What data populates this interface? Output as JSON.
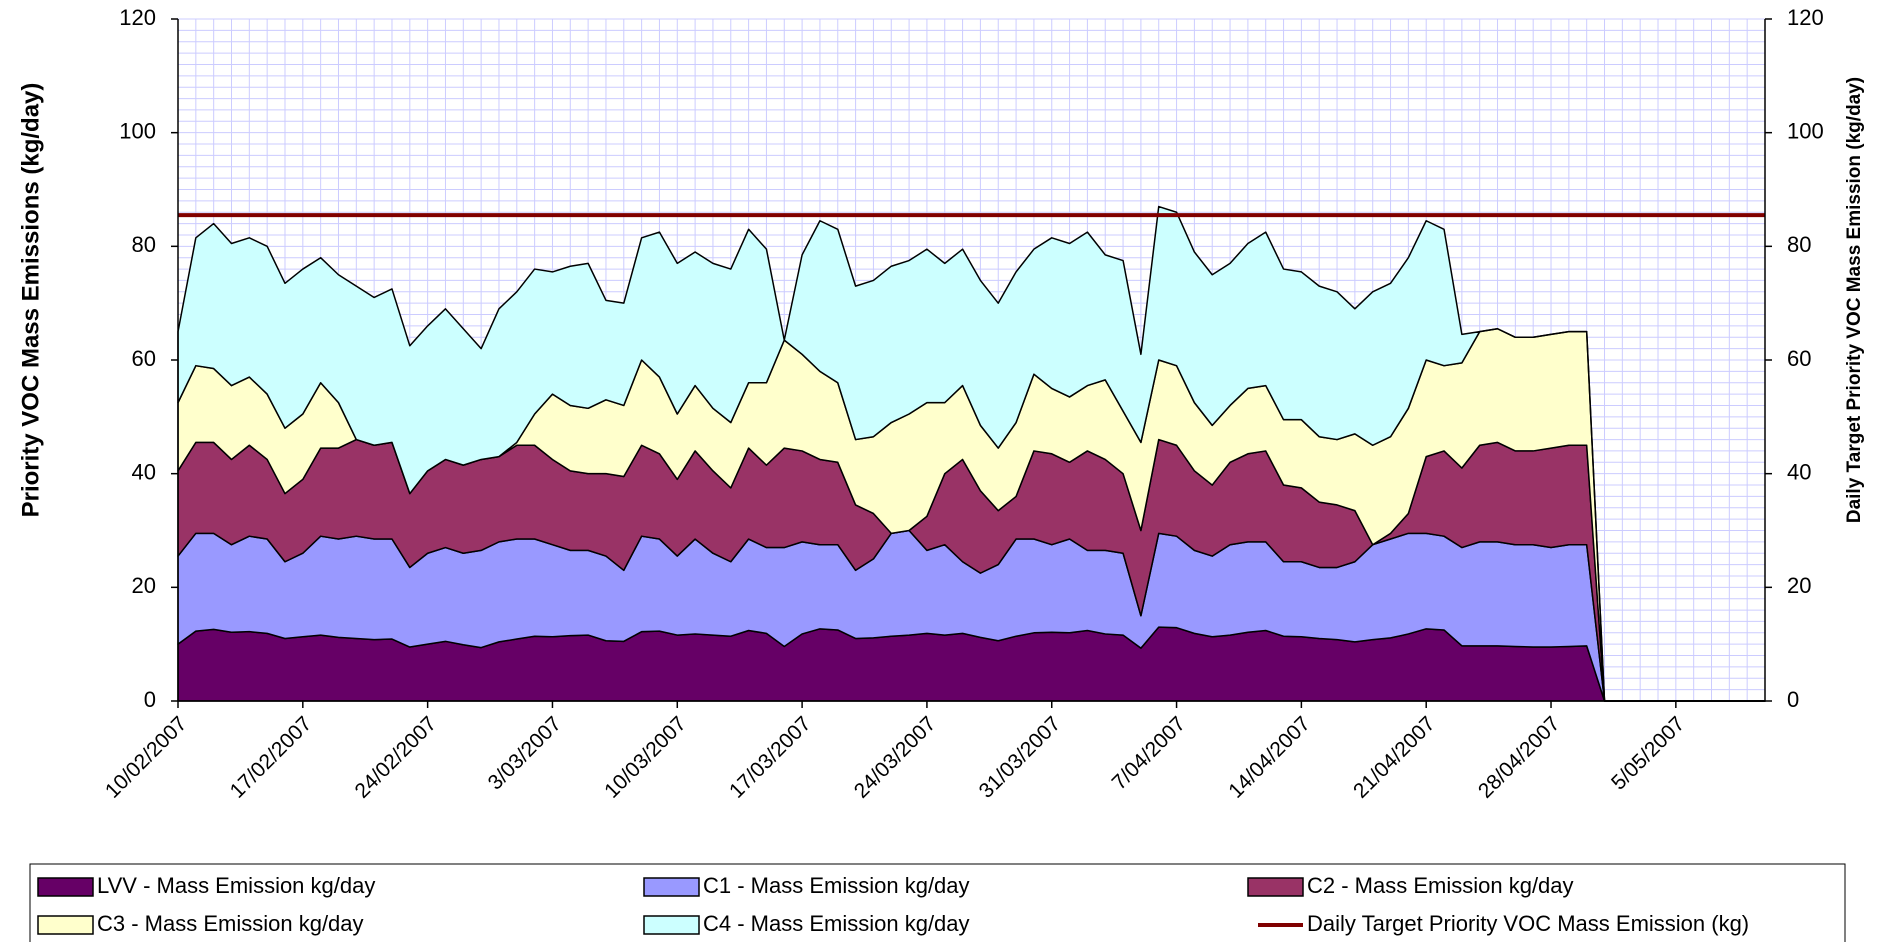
{
  "chart_data": {
    "type": "stacked_area",
    "ylabel": "Priority VOC Mass Emissions (kg/day)",
    "y2label": "Daily Target Priority VOC Mass Emission (kg/day)",
    "categories": [
      "10/02/2007",
      null,
      null,
      null,
      null,
      null,
      null,
      "17/02/2007",
      null,
      null,
      null,
      null,
      null,
      null,
      "24/02/2007",
      null,
      null,
      null,
      null,
      null,
      null,
      "3/03/2007",
      null,
      null,
      null,
      null,
      null,
      null,
      "10/03/2007",
      null,
      null,
      null,
      null,
      null,
      null,
      "17/03/2007",
      null,
      null,
      null,
      null,
      null,
      null,
      "24/03/2007",
      null,
      null,
      null,
      null,
      null,
      null,
      "31/03/2007",
      null,
      null,
      null,
      null,
      null,
      null,
      "7/04/2007",
      null,
      null,
      null,
      null,
      null,
      null,
      "14/04/2007",
      null,
      null,
      null,
      null,
      null,
      null,
      "21/04/2007",
      null,
      null,
      null,
      null,
      null,
      null,
      "28/04/2007",
      null,
      null,
      null,
      null,
      null,
      null,
      "5/05/2007",
      null,
      null,
      null,
      null,
      null
    ],
    "ylim": [
      0,
      120
    ],
    "yticks": [
      0,
      20,
      40,
      60,
      80,
      100,
      120
    ],
    "y2lim": [
      0,
      120
    ],
    "y2ticks": [
      0,
      20,
      40,
      60,
      80,
      100,
      120
    ],
    "grid": true,
    "grid_minor_step": 2,
    "legend": "bottom",
    "series": [
      {
        "name": "LVV - Mass Emission kg/day",
        "color": "#660066",
        "values": [
          10,
          12.3,
          12.6,
          12.1,
          12.2,
          11.9,
          11,
          11.3,
          11.6,
          11.2,
          11,
          10.8,
          10.9,
          9.5,
          10,
          10.5,
          9.9,
          9.4,
          10.4,
          10.9,
          11.4,
          11.3,
          11.5,
          11.6,
          10.6,
          10.5,
          12.2,
          12.3,
          11.6,
          11.8,
          11.6,
          11.4,
          12.4,
          11.9,
          9.6,
          11.8,
          12.7,
          12.5,
          11,
          11.1,
          11.4,
          11.6,
          11.9,
          11.6,
          11.9,
          11.2,
          10.6,
          11.4,
          12,
          12.1,
          12,
          12.4,
          11.8,
          11.6,
          9.3,
          13,
          12.9,
          11.9,
          11.3,
          11.6,
          12.1,
          12.4,
          11.4,
          11.3,
          11,
          10.8,
          10.4,
          10.8,
          11.1,
          11.8,
          12.7,
          12.5,
          9.7,
          9.7,
          9.7,
          9.6,
          9.5,
          9.5,
          9.6,
          9.7,
          0,
          0,
          0,
          0,
          0,
          0,
          0,
          0,
          0,
          0
        ]
      },
      {
        "name": "C1 - Mass Emission kg/day",
        "color": "#9999ff",
        "values": [
          15.5,
          17.2,
          16.9,
          15.4,
          16.8,
          16.6,
          13.5,
          14.7,
          17.4,
          17.3,
          18,
          17.7,
          17.6,
          14,
          16,
          16.5,
          16.1,
          17.1,
          17.6,
          17.6,
          17.1,
          16.2,
          15,
          14.9,
          14.9,
          12.5,
          16.8,
          16.2,
          13.9,
          16.7,
          14.4,
          13.1,
          16.1,
          15.1,
          17.4,
          16.2,
          14.8,
          15,
          12,
          13.9,
          18.1,
          18.4,
          14.6,
          15.9,
          12.6,
          11.3,
          13.4,
          17.1,
          16.5,
          15.4,
          16.5,
          14.1,
          14.7,
          14.4,
          5.7,
          16.5,
          16.1,
          14.6,
          14.2,
          15.9,
          15.9,
          15.6,
          13.1,
          13.2,
          12.5,
          12.7,
          14.1,
          16.7,
          17.4,
          17.7,
          16.8,
          16.5,
          17.3,
          18.3,
          18.3,
          17.9,
          18,
          17.5,
          17.9,
          17.8,
          0,
          0,
          0,
          0,
          0,
          0,
          0,
          0,
          0,
          0
        ]
      },
      {
        "name": "C2 - Mass Emission kg/day",
        "color": "#993366",
        "values": [
          15,
          16,
          16,
          15,
          16,
          14,
          12,
          13,
          15.5,
          16,
          17,
          16.5,
          17,
          13,
          14.5,
          15.5,
          15.5,
          16,
          15,
          16.5,
          16.5,
          15,
          14,
          13.5,
          14.5,
          16.5,
          16,
          15,
          13.5,
          15.5,
          14.5,
          13,
          16,
          14.5,
          17.5,
          16,
          15,
          14.5,
          11.5,
          8,
          0,
          0,
          6,
          12.5,
          18,
          14.5,
          9.5,
          7.5,
          15.5,
          16,
          13.5,
          17.5,
          16,
          14,
          15,
          16.5,
          16,
          14,
          12.5,
          14.5,
          15.5,
          16,
          13.5,
          13,
          11.5,
          11,
          9,
          0,
          1,
          3.5,
          13.5,
          15,
          14,
          17,
          17.5,
          16.5,
          16.5,
          17.5,
          17.5,
          17.5,
          0,
          0,
          0,
          0,
          0,
          0,
          0,
          0,
          0,
          0
        ]
      },
      {
        "name": "C3 - Mass Emission kg/day",
        "color": "#ffffcc",
        "values": [
          12,
          13.5,
          13,
          13,
          12,
          11.5,
          11.5,
          11.5,
          11.5,
          8,
          0,
          0,
          0,
          0,
          0,
          0,
          0,
          0,
          0,
          0.5,
          5.5,
          11.5,
          11.5,
          11.5,
          13,
          12.5,
          15,
          13.5,
          11.5,
          11.5,
          11,
          11.5,
          11.5,
          14.5,
          19,
          17,
          15.5,
          14,
          11.5,
          13.5,
          19.5,
          20.5,
          20,
          12.5,
          13,
          11.5,
          11,
          13,
          13.5,
          11.5,
          11.5,
          11.5,
          14,
          11,
          15.5,
          14,
          14,
          12,
          10.5,
          10,
          11.5,
          11.5,
          11.5,
          12,
          11.5,
          11.5,
          13.5,
          17.5,
          17,
          18.5,
          17,
          15,
          18.5,
          20,
          20,
          20,
          20,
          20,
          20,
          20,
          0,
          0,
          0,
          0,
          0,
          0,
          0,
          0,
          0,
          0
        ]
      },
      {
        "name": "C4 - Mass Emission kg/day",
        "color": "#ccffff",
        "values": [
          12.5,
          22.5,
          25.5,
          25,
          24.5,
          26,
          25.5,
          25.5,
          22,
          22.5,
          27,
          26,
          27,
          26,
          25.5,
          26.5,
          24,
          19.5,
          26,
          26.5,
          25.5,
          21.5,
          24.5,
          25.5,
          17.5,
          18,
          21.5,
          25.5,
          26.5,
          23.5,
          25.5,
          27,
          27,
          23.5,
          0,
          17.5,
          26.5,
          27,
          27,
          27.5,
          27.5,
          27,
          27,
          24.5,
          24,
          25.5,
          25.5,
          26.5,
          22,
          26.5,
          27,
          27,
          22,
          26.5,
          15.5,
          27,
          27,
          26.5,
          26.5,
          25,
          25.5,
          27,
          26.5,
          26,
          26.5,
          26,
          22,
          27,
          27,
          26.5,
          24.5,
          24,
          5,
          0,
          0,
          0,
          0,
          0,
          0,
          0,
          0,
          0,
          0,
          0,
          0,
          0,
          0,
          0,
          0,
          0
        ]
      },
      {
        "name": "Daily Target Priority VOC Mass Emission (kg)",
        "color": "#800000",
        "type": "line",
        "axis": "y2",
        "values": [
          85.5,
          85.5,
          85.5,
          85.5,
          85.5,
          85.5,
          85.5,
          85.5,
          85.5,
          85.5,
          85.5,
          85.5,
          85.5,
          85.5,
          85.5,
          85.5,
          85.5,
          85.5,
          85.5,
          85.5,
          85.5,
          85.5,
          85.5,
          85.5,
          85.5,
          85.5,
          85.5,
          85.5,
          85.5,
          85.5,
          85.5,
          85.5,
          85.5,
          85.5,
          85.5,
          85.5,
          85.5,
          85.5,
          85.5,
          85.5,
          85.5,
          85.5,
          85.5,
          85.5,
          85.5,
          85.5,
          85.5,
          85.5,
          85.5,
          85.5,
          85.5,
          85.5,
          85.5,
          85.5,
          85.5,
          85.5,
          85.5,
          85.5,
          85.5,
          85.5,
          85.5,
          85.5,
          85.5,
          85.5,
          85.5,
          85.5,
          85.5,
          85.5,
          85.5,
          85.5,
          85.5,
          85.5,
          85.5,
          85.5,
          85.5,
          85.5,
          85.5,
          85.5,
          85.5,
          85.5,
          85.5,
          85.5,
          85.5,
          85.5,
          85.5,
          85.5,
          85.5,
          85.5,
          85.5,
          85.5
        ]
      }
    ]
  }
}
